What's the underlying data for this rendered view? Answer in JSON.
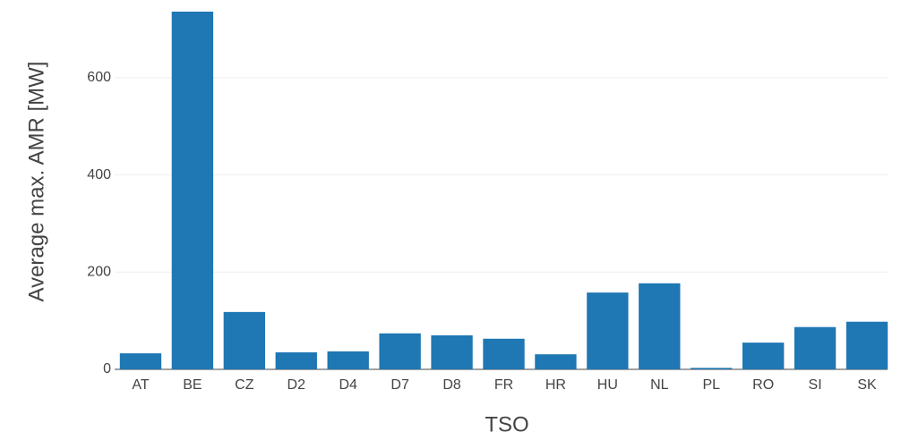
{
  "chart_data": {
    "type": "bar",
    "x_label": "TSO",
    "y_label": "Average max. AMR [MW]",
    "categories": [
      "AT",
      "BE",
      "CZ",
      "D2",
      "D4",
      "D7",
      "D8",
      "FR",
      "HR",
      "HU",
      "NL",
      "PL",
      "RO",
      "SI",
      "SK"
    ],
    "values": [
      33,
      736,
      118,
      35,
      37,
      74,
      70,
      63,
      31,
      158,
      177,
      3,
      55,
      87,
      98
    ],
    "color": "#1f77b4",
    "ylim": [
      0,
      736
    ],
    "yticks": [
      0,
      200,
      400,
      600
    ],
    "grid": true
  }
}
